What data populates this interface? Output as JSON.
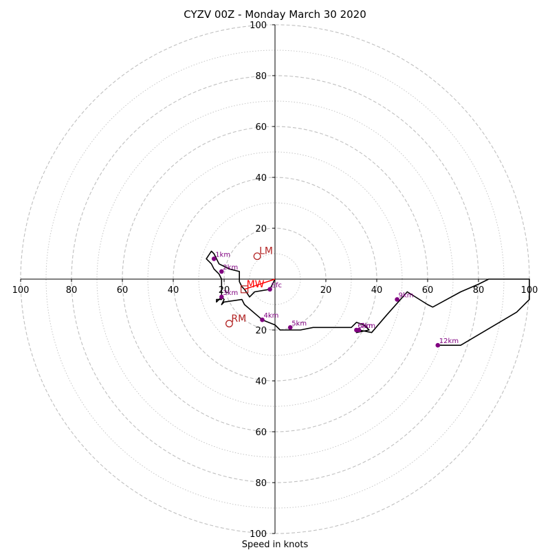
{
  "chart_data": {
    "type": "hodograph",
    "title": "CYZV 00Z - Monday March 30 2020",
    "xlabel": "Speed in knots",
    "range": 100,
    "dashed_ring_step": 20,
    "dotted_ring_step": 10,
    "ticks": [
      {
        "value": 20,
        "label": "20"
      },
      {
        "value": 40,
        "label": "40"
      },
      {
        "value": 60,
        "label": "60"
      },
      {
        "value": 80,
        "label": "80"
      },
      {
        "value": 100,
        "label": "100"
      }
    ],
    "colors": {
      "trace": "#000000",
      "points": "#800080",
      "motion": "#b22222",
      "mean_wind": "#ff0000",
      "grid": "#bfbfbf"
    },
    "trace": [
      [
        0,
        0
      ],
      [
        -2,
        -4
      ],
      [
        -8,
        -5
      ],
      [
        -10,
        -7
      ],
      [
        -12,
        -4
      ],
      [
        -13,
        -3
      ],
      [
        -14,
        -1
      ],
      [
        -14,
        3
      ],
      [
        -18,
        4
      ],
      [
        -20,
        5
      ],
      [
        -22,
        6
      ],
      [
        -24,
        10
      ],
      [
        -25,
        11
      ],
      [
        -27,
        8
      ],
      [
        -25,
        6
      ],
      [
        -24,
        4
      ],
      [
        -23,
        3
      ],
      [
        -22,
        2
      ],
      [
        -21,
        0
      ],
      [
        -21,
        -5
      ],
      [
        -21,
        -8
      ],
      [
        -23,
        -8
      ],
      [
        -23,
        -9
      ],
      [
        -21,
        -7
      ],
      [
        -20,
        -8
      ],
      [
        -21,
        -10
      ],
      [
        -20,
        -9
      ],
      [
        -13,
        -8
      ],
      [
        -12,
        -10
      ],
      [
        -5,
        -16
      ],
      [
        0,
        -18
      ],
      [
        2,
        -20
      ],
      [
        10,
        -20
      ],
      [
        15,
        -19
      ],
      [
        30,
        -19
      ],
      [
        32,
        -17
      ],
      [
        35,
        -18
      ],
      [
        37,
        -20
      ],
      [
        32,
        -21
      ],
      [
        33,
        -20
      ],
      [
        38,
        -21
      ],
      [
        44,
        -14
      ],
      [
        52,
        -5
      ],
      [
        60,
        -10
      ],
      [
        62,
        -11
      ],
      [
        73,
        -5
      ],
      [
        80,
        -2
      ],
      [
        84,
        0
      ],
      [
        100,
        0
      ],
      [
        100,
        -8
      ],
      [
        95,
        -13
      ],
      [
        73,
        -26
      ],
      [
        64,
        -26
      ]
    ],
    "height_points": [
      {
        "label": "Sfc",
        "u": -2,
        "v": -4
      },
      {
        "label": "1km",
        "u": -24,
        "v": 8
      },
      {
        "label": "2km",
        "u": -21,
        "v": 3
      },
      {
        "label": "3km",
        "u": -21,
        "v": -7
      },
      {
        "label": "4km",
        "u": -5,
        "v": -16
      },
      {
        "label": "5km",
        "u": 6,
        "v": -19
      },
      {
        "label": "6km",
        "u": 32,
        "v": -20
      },
      {
        "label": "7km",
        "u": 33,
        "v": -20
      },
      {
        "label": "9km",
        "u": 48,
        "v": -8
      },
      {
        "label": "12km",
        "u": 64,
        "v": -26
      }
    ],
    "mean_wind": {
      "label": "MW",
      "u": -12,
      "v": -4
    },
    "storm_motions": [
      {
        "label": "LM",
        "u": -7,
        "v": 9
      },
      {
        "label": "RM",
        "u": -18,
        "v": -17.5
      }
    ]
  }
}
